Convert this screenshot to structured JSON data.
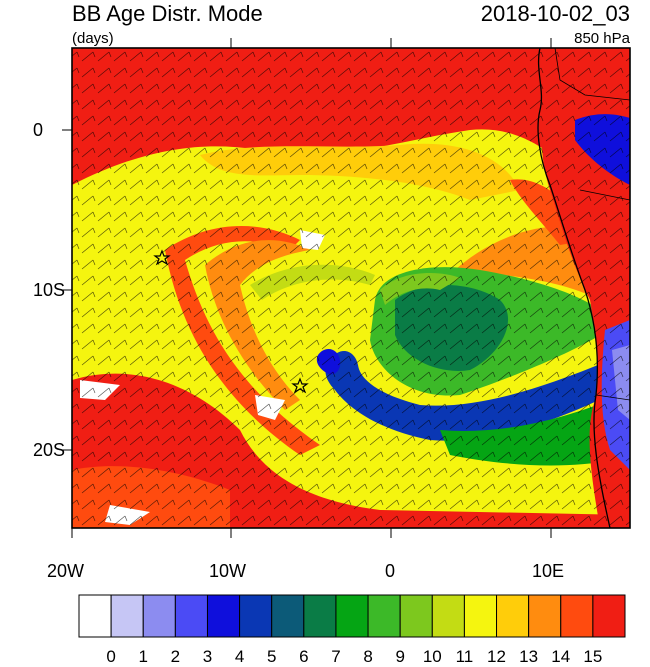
{
  "header": {
    "title": "BB Age Distr. Mode",
    "units": "(days)",
    "datetime": "2018-10-02_03",
    "level": "850 hPa"
  },
  "axes": {
    "lat_labels": [
      "0",
      "10S",
      "20S"
    ],
    "lon_labels": [
      "20W",
      "10W",
      "0",
      "10E"
    ]
  },
  "colorbar": {
    "labels": [
      "0",
      "1",
      "2",
      "3",
      "4",
      "5",
      "6",
      "7",
      "8",
      "9",
      "10",
      "11",
      "12",
      "13",
      "14",
      "15"
    ],
    "colors": [
      "#ffffff",
      "#c6c6f5",
      "#8c8cf0",
      "#4b4bf5",
      "#0f0fdc",
      "#0a37b4",
      "#0c5a78",
      "#0a7c46",
      "#05a514",
      "#3cb928",
      "#7dc81e",
      "#c3dc14",
      "#f5f50f",
      "#ffcd0a",
      "#ff8c0f",
      "#ff4b0f",
      "#f01e14"
    ]
  },
  "map_colors": {
    "land_border": "#000000",
    "background": "#ffffff"
  },
  "markers": [
    {
      "name": "star-marker-west"
    },
    {
      "name": "star-marker-center"
    }
  ]
}
